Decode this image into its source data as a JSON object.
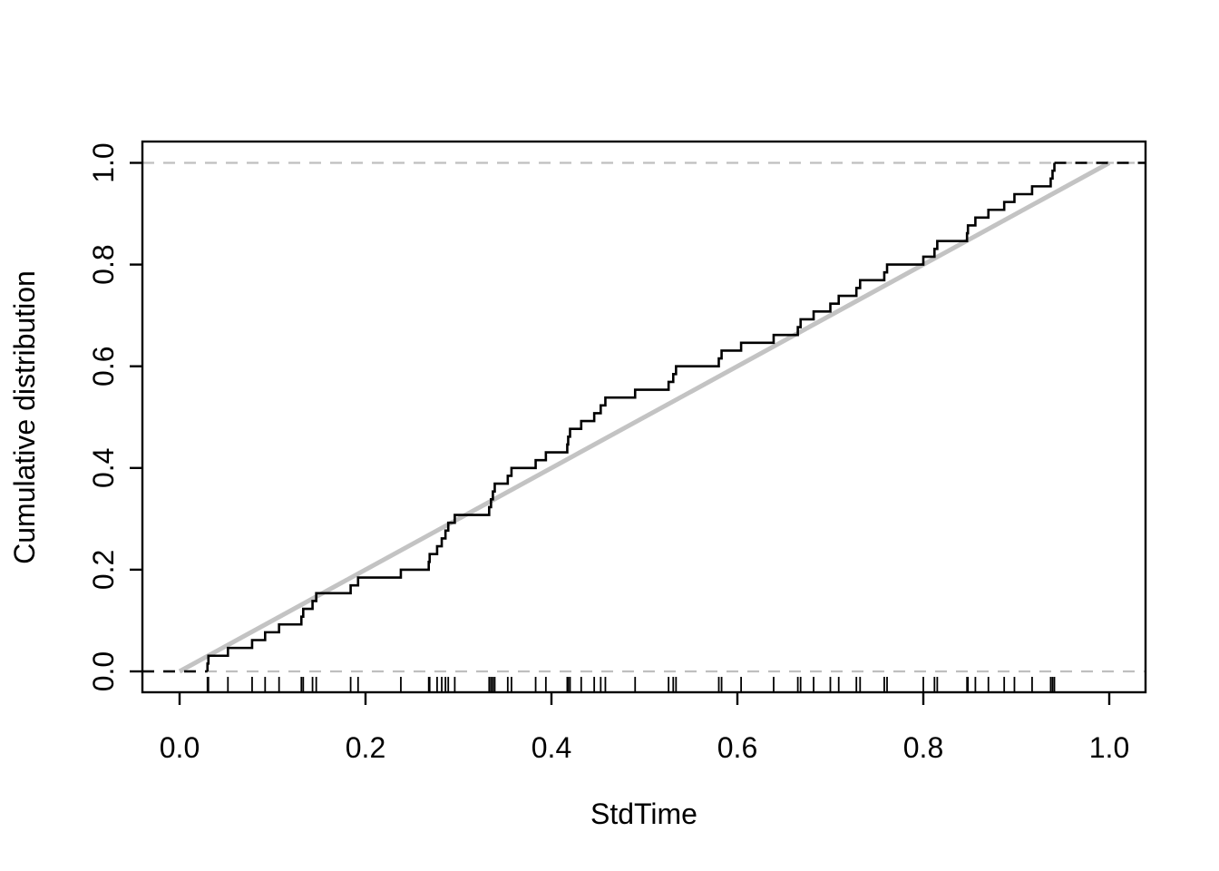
{
  "chart_data": {
    "type": "ecdf",
    "title": "",
    "xlabel": "StdTime",
    "ylabel": "Cumulative distribution",
    "x_tick_labels": [
      "0.0",
      "0.2",
      "0.4",
      "0.6",
      "0.8",
      "1.0"
    ],
    "y_tick_labels": [
      "0.0",
      "0.2",
      "0.4",
      "0.6",
      "0.8",
      "1.0"
    ],
    "x_tick_values": [
      0.0,
      0.2,
      0.4,
      0.6,
      0.8,
      1.0
    ],
    "y_tick_values": [
      0.0,
      0.2,
      0.4,
      0.6,
      0.8,
      1.0
    ],
    "xlim": [
      -0.04,
      1.04
    ],
    "ylim": [
      -0.042,
      1.042
    ],
    "grid": false,
    "legend": null,
    "n_points": 65,
    "values": [
      0.03,
      0.031,
      0.052,
      0.078,
      0.092,
      0.107,
      0.131,
      0.133,
      0.143,
      0.147,
      0.184,
      0.192,
      0.238,
      0.268,
      0.269,
      0.277,
      0.282,
      0.286,
      0.289,
      0.296,
      0.333,
      0.335,
      0.337,
      0.339,
      0.353,
      0.357,
      0.383,
      0.394,
      0.417,
      0.418,
      0.42,
      0.432,
      0.446,
      0.453,
      0.458,
      0.49,
      0.526,
      0.531,
      0.534,
      0.58,
      0.583,
      0.604,
      0.639,
      0.665,
      0.668,
      0.682,
      0.7,
      0.709,
      0.728,
      0.732,
      0.758,
      0.761,
      0.8,
      0.812,
      0.815,
      0.847,
      0.848,
      0.856,
      0.87,
      0.887,
      0.898,
      0.917,
      0.937,
      0.939,
      0.941
    ],
    "reference_line": {
      "from": [
        0,
        0
      ],
      "to": [
        1,
        1
      ]
    },
    "guide_lines_y": [
      0,
      1
    ],
    "rug": true,
    "colors": {
      "ecdf_line": "#000000",
      "reference_line": "#c3c3c3",
      "guide_dashed": "#bfbfbf",
      "extension_dashed": "#000000",
      "axis": "#000000",
      "background": "#ffffff"
    }
  }
}
